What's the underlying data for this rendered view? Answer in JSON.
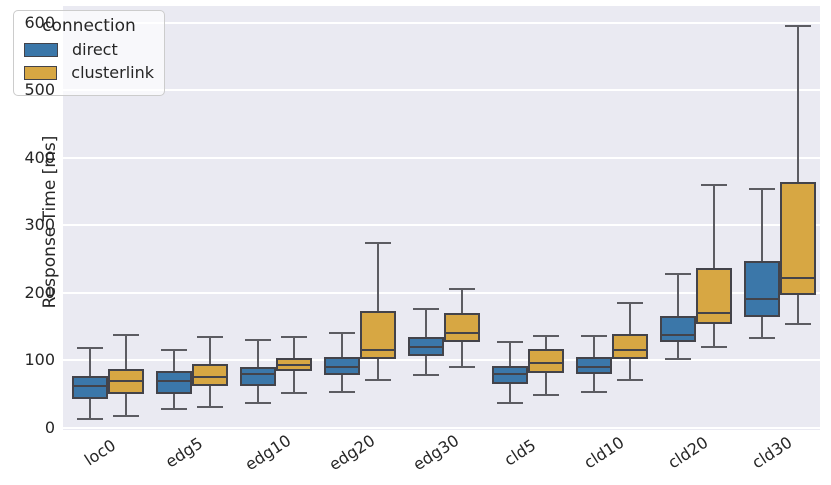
{
  "chart_data": {
    "type": "box",
    "title": "",
    "xlabel": "",
    "ylabel": "Response Time [ms]",
    "yticks": [
      0,
      100,
      200,
      300,
      400,
      500,
      600
    ],
    "ylim": [
      0,
      620
    ],
    "grid": "horizontal-white-on-gray",
    "categories": [
      "loc0",
      "edg5",
      "edg10",
      "edg20",
      "edg30",
      "cld5",
      "cld10",
      "cld20",
      "cld30"
    ],
    "series": [
      {
        "name": "direct",
        "color": "#3b77a9",
        "summary_format": [
          "whisker_low",
          "q1",
          "median",
          "q3",
          "whisker_high"
        ],
        "values": [
          [
            13,
            42,
            62,
            76,
            118
          ],
          [
            28,
            50,
            69,
            83,
            115
          ],
          [
            36,
            61,
            79,
            89,
            129
          ],
          [
            53,
            78,
            89,
            104,
            140
          ],
          [
            78,
            106,
            120,
            134,
            175
          ],
          [
            36,
            64,
            80,
            91,
            127
          ],
          [
            53,
            79,
            90,
            104,
            135
          ],
          [
            101,
            126,
            137,
            165,
            227
          ],
          [
            132,
            164,
            190,
            246,
            353
          ]
        ]
      },
      {
        "name": "clusterlink",
        "color": "#d7a743",
        "summary_format": [
          "whisker_low",
          "q1",
          "median",
          "q3",
          "whisker_high"
        ],
        "values": [
          [
            17,
            49,
            69,
            87,
            137
          ],
          [
            30,
            61,
            75,
            94,
            134
          ],
          [
            51,
            84,
            93,
            103,
            134
          ],
          [
            70,
            101,
            115,
            172,
            273
          ],
          [
            90,
            127,
            140,
            169,
            205
          ],
          [
            48,
            81,
            95,
            117,
            136
          ],
          [
            70,
            102,
            115,
            139,
            184
          ],
          [
            120,
            153,
            170,
            237,
            360
          ],
          [
            154,
            196,
            222,
            364,
            595
          ]
        ]
      }
    ],
    "legend": {
      "title": "connection",
      "position": "upper-left",
      "entries": [
        {
          "label": "direct",
          "color": "#3b77a9"
        },
        {
          "label": "clusterlink",
          "color": "#d7a743"
        }
      ]
    }
  }
}
